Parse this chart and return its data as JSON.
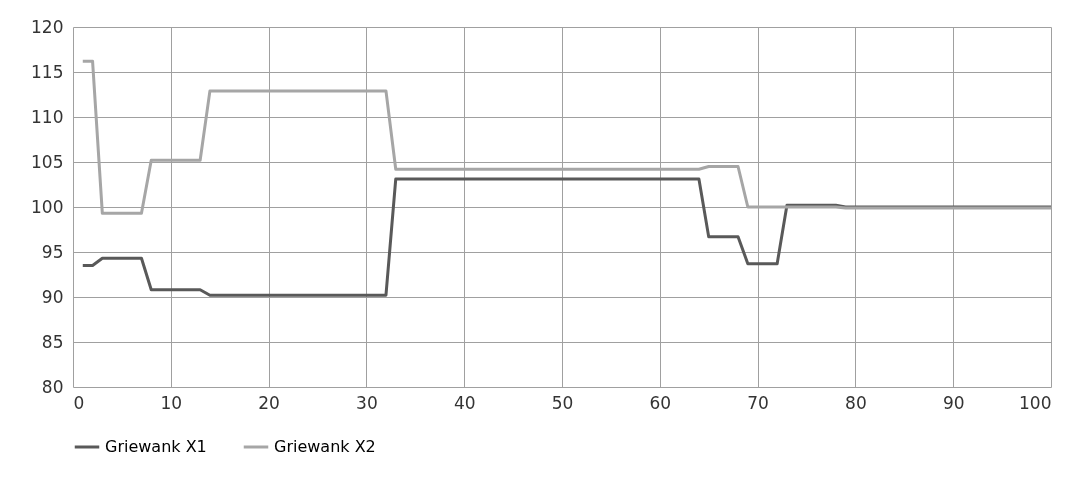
{
  "chart_data": {
    "type": "line",
    "xlim": [
      0,
      100
    ],
    "xticks": [
      0,
      10,
      20,
      30,
      40,
      50,
      60,
      70,
      80,
      90,
      100
    ],
    "ylim": [
      80,
      120
    ],
    "yticks": [
      80,
      85,
      90,
      95,
      100,
      105,
      110,
      115,
      120
    ],
    "grid": true,
    "legend": "bottom",
    "series": [
      {
        "name": "Griewank X1",
        "color": "#595959",
        "x": [
          1,
          2,
          3,
          7,
          8,
          13,
          14,
          32,
          33,
          64,
          65,
          68,
          69,
          72,
          73,
          78,
          79,
          100
        ],
        "values": [
          93.5,
          93.5,
          94.3,
          94.3,
          90.8,
          90.8,
          90.2,
          90.2,
          103.1,
          103.1,
          96.7,
          96.7,
          93.7,
          93.7,
          100.2,
          100.2,
          100,
          100
        ]
      },
      {
        "name": "Griewank X2",
        "color": "#a6a6a6",
        "x": [
          1,
          2,
          3,
          7,
          8,
          13,
          14,
          32,
          33,
          64,
          65,
          68,
          69,
          78,
          79,
          100
        ],
        "values": [
          116.2,
          116.2,
          99.3,
          99.3,
          105.2,
          105.2,
          112.9,
          112.9,
          104.2,
          104.2,
          104.5,
          104.5,
          100,
          100,
          99.9,
          99.9
        ]
      }
    ]
  }
}
